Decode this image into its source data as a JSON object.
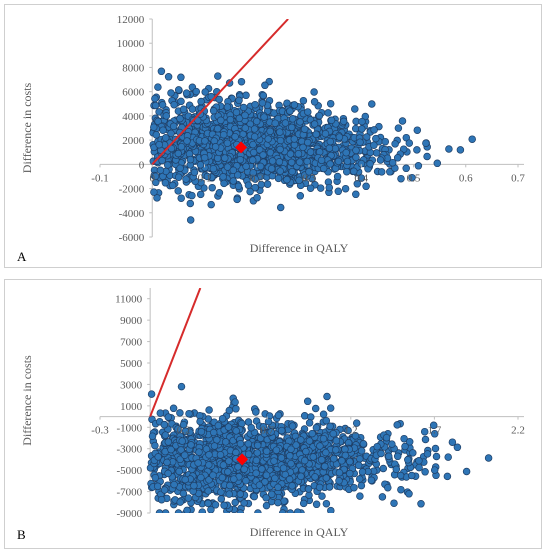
{
  "panels": [
    {
      "letter": "A"
    },
    {
      "letter": "B"
    }
  ],
  "chart_data": [
    {
      "type": "scatter",
      "panel": "A",
      "title": "",
      "xlabel": "Difference in QALY",
      "ylabel": "Difference in costs",
      "xlim": [
        -0.1,
        0.7
      ],
      "ylim": [
        -6000,
        12000
      ],
      "xticks": [
        -0.1,
        0,
        0.1,
        0.2,
        0.3,
        0.4,
        0.5,
        0.6,
        0.7
      ],
      "xtick_labels": [
        "-0.1",
        "0",
        "0.1",
        "0.2",
        "0.3",
        "0.4",
        "0.5",
        "0.6",
        "0.7"
      ],
      "yticks": [
        -6000,
        -4000,
        -2000,
        0,
        2000,
        4000,
        6000,
        8000,
        10000,
        12000
      ],
      "ytick_labels": [
        "-6000",
        "-4000",
        "-2000",
        "0",
        "2000",
        "4000",
        "6000",
        "8000",
        "10000",
        "12000"
      ],
      "series": [
        {
          "kind": "simulations",
          "color": "#2e75b6",
          "edge_color": "#1f3f66",
          "count": 1600,
          "seed": 11,
          "x_range": [
            0,
            0.64
          ],
          "x_mean": 0.17,
          "x_sd": 0.14,
          "y_base": 1900,
          "y_slope": -900,
          "y_sd_start": 2100,
          "y_sd_end": 900,
          "y_min": -4600,
          "y_max": 8200
        },
        {
          "kind": "mean",
          "color": "#ff0000",
          "x": 0.17,
          "y": 1400
        },
        {
          "kind": "wtp_line",
          "color": "#d62b2b",
          "x": [
            0,
            0.26
          ],
          "y": [
            0,
            12000
          ]
        }
      ]
    },
    {
      "type": "scatter",
      "panel": "B",
      "title": "",
      "xlabel": "Difference in QALY",
      "ylabel": "Difference in costs",
      "xlim": [
        -0.3,
        2.2
      ],
      "ylim": [
        -9000,
        12000
      ],
      "xticks": [
        -0.3,
        0.2,
        0.7,
        1.2,
        1.7,
        2.2
      ],
      "xtick_labels": [
        "-0.3",
        "0.2",
        "0.7",
        "1.2",
        "1.7",
        "2.2"
      ],
      "yticks": [
        -9000,
        -7000,
        -5000,
        -3000,
        -1000,
        1000,
        3000,
        5000,
        7000,
        9000,
        11000
      ],
      "ytick_labels": [
        "-9000",
        "-7000",
        "-5000",
        "-3000",
        "-1000",
        "1000",
        "3000",
        "5000",
        "7000",
        "9000",
        "11000"
      ],
      "series": [
        {
          "kind": "simulations",
          "color": "#2e75b6",
          "edge_color": "#1f3f66",
          "count": 1600,
          "seed": 23,
          "x_range": [
            0,
            2.05
          ],
          "x_mean": 0.55,
          "x_sd": 0.45,
          "y_base": -4300,
          "y_slope": 500,
          "y_sd_start": 2300,
          "y_sd_end": 1300,
          "y_min": -9000,
          "y_max": 2800
        },
        {
          "kind": "mean",
          "color": "#ff0000",
          "x": 0.55,
          "y": -4000
        },
        {
          "kind": "wtp_line",
          "color": "#d62b2b",
          "x": [
            0,
            0.3
          ],
          "y": [
            0,
            12000
          ]
        }
      ]
    }
  ]
}
